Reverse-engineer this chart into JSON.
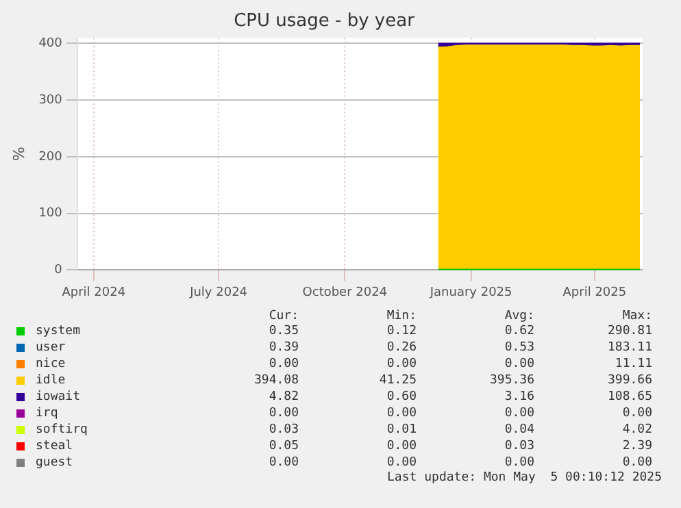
{
  "chart_data": {
    "type": "area",
    "title": "CPU usage - by year",
    "ylabel": "%",
    "stacked": true,
    "grid": true,
    "legend": "bottom",
    "xlim": [
      "2024-03-20",
      "2025-05-06"
    ],
    "ylim": [
      0,
      410
    ],
    "yticks": [
      0,
      100,
      200,
      300,
      400
    ],
    "xticks": [
      {
        "value": "2024-04-01",
        "label": "April 2024"
      },
      {
        "value": "2024-07-01",
        "label": "July 2024"
      },
      {
        "value": "2024-10-01",
        "label": "October 2024"
      },
      {
        "value": "2025-01-01",
        "label": "January 2025"
      },
      {
        "value": "2025-04-01",
        "label": "April 2025"
      }
    ],
    "x": [
      "2024-12-08",
      "2024-12-15",
      "2024-12-22",
      "2024-12-29",
      "2025-01-05",
      "2025-01-12",
      "2025-01-19",
      "2025-01-26",
      "2025-02-02",
      "2025-02-09",
      "2025-02-16",
      "2025-02-23",
      "2025-03-02",
      "2025-03-09",
      "2025-03-16",
      "2025-03-23",
      "2025-03-30",
      "2025-04-06",
      "2025-04-13",
      "2025-04-20",
      "2025-04-27",
      "2025-05-04"
    ],
    "series": [
      {
        "name": "system",
        "color": "#00cc00",
        "values": [
          1,
          1,
          1,
          1,
          1,
          1,
          1,
          1,
          1,
          1,
          1,
          1,
          1,
          1,
          1,
          1,
          1,
          1,
          1,
          1,
          1,
          1
        ]
      },
      {
        "name": "user",
        "color": "#0066b3",
        "values": [
          null,
          null,
          null,
          null,
          null,
          null,
          null,
          null,
          null,
          null,
          null,
          null,
          null,
          null,
          null,
          null,
          null,
          null,
          null,
          null,
          null,
          null
        ]
      },
      {
        "name": "nice",
        "color": "#ff8000",
        "values": [
          null,
          null,
          null,
          null,
          null,
          null,
          null,
          null,
          null,
          null,
          null,
          null,
          null,
          null,
          null,
          null,
          null,
          null,
          null,
          null,
          null,
          null
        ]
      },
      {
        "name": "idle",
        "color": "#ffcc00",
        "values": [
          392,
          393,
          395,
          396,
          396,
          396,
          396,
          396,
          396,
          396,
          396,
          396,
          396,
          396,
          395,
          395,
          394,
          394,
          395,
          394,
          395,
          395
        ]
      },
      {
        "name": "iowait",
        "color": "#330099",
        "values": [
          7,
          6,
          4,
          3,
          3,
          3,
          3,
          3,
          3,
          3,
          3,
          3,
          3,
          3,
          4,
          4,
          5,
          5,
          4,
          5,
          4,
          4
        ]
      },
      {
        "name": "irq",
        "color": "#990099",
        "values": [
          null,
          null,
          null,
          null,
          null,
          null,
          null,
          null,
          null,
          null,
          null,
          null,
          null,
          null,
          null,
          null,
          null,
          null,
          null,
          null,
          null,
          null
        ]
      },
      {
        "name": "softirq",
        "color": "#ccff00",
        "values": [
          null,
          null,
          null,
          null,
          null,
          null,
          null,
          null,
          null,
          null,
          null,
          null,
          null,
          null,
          null,
          null,
          null,
          null,
          null,
          null,
          null,
          null
        ]
      },
      {
        "name": "steal",
        "color": "#ff0000",
        "values": [
          null,
          null,
          null,
          null,
          null,
          null,
          null,
          null,
          null,
          null,
          null,
          null,
          null,
          null,
          null,
          null,
          null,
          null,
          null,
          null,
          null,
          null
        ]
      },
      {
        "name": "guest",
        "color": "#808080",
        "values": [
          null,
          null,
          null,
          null,
          null,
          null,
          null,
          null,
          null,
          null,
          null,
          null,
          null,
          null,
          null,
          null,
          null,
          null,
          null,
          null,
          null,
          null
        ]
      }
    ],
    "annotations": [
      "Cur:",
      "Min:",
      "Avg:",
      "Max:",
      "0.35",
      "0.12",
      "0.62",
      "290.81",
      "0.39",
      "0.26",
      "0.53",
      "183.11",
      "0.00",
      "0.00",
      "0.00",
      "11.11",
      "394.08",
      "41.25",
      "395.36",
      "399.66",
      "4.82",
      "0.60",
      "3.16",
      "108.65",
      "0.00",
      "0.00",
      "0.00",
      "0.00",
      "0.03",
      "0.01",
      "0.04",
      "4.02",
      "0.05",
      "0.00",
      "0.03",
      "2.39",
      "0.00",
      "0.00",
      "0.00",
      "0.00",
      "Last update: Mon May  5 00:10:12 2025"
    ]
  }
}
